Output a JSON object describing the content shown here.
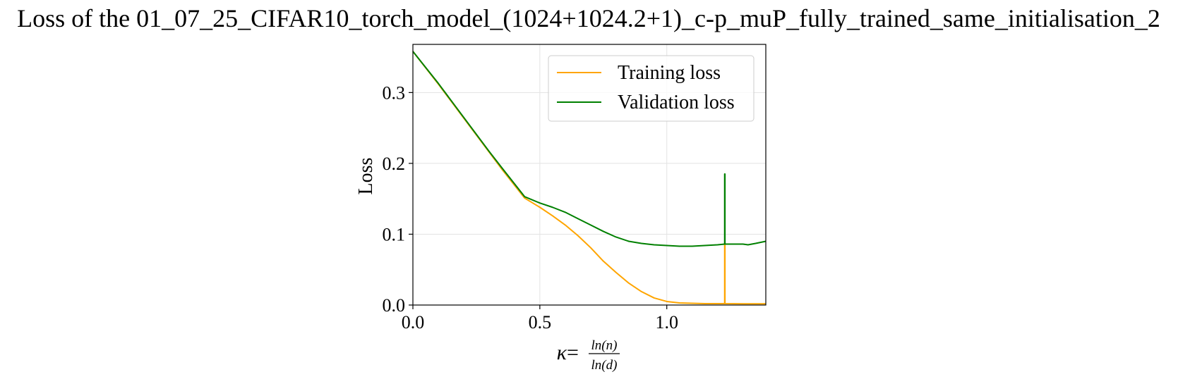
{
  "chart_data": {
    "type": "line",
    "title": "Loss of the 01_07_25_CIFAR10_torch_model_(1024+1024.2+1)_c-p_muP_fully_trained_same_initialisation_2",
    "xlabel": {
      "kappa": "κ",
      "equals": "=",
      "numerator": "ln(n)",
      "denominator": "ln(d)"
    },
    "ylabel": "Loss",
    "xlim": [
      0.0,
      1.39
    ],
    "ylim": [
      0.0,
      0.368
    ],
    "xticks": [
      {
        "value": 0.0,
        "label": "0.0"
      },
      {
        "value": 0.5,
        "label": "0.5"
      },
      {
        "value": 1.0,
        "label": "1.0"
      }
    ],
    "yticks": [
      {
        "value": 0.0,
        "label": "0.0"
      },
      {
        "value": 0.1,
        "label": "0.1"
      },
      {
        "value": 0.2,
        "label": "0.2"
      },
      {
        "value": 0.3,
        "label": "0.3"
      }
    ],
    "grid": true,
    "legend_position": "top-right",
    "series": [
      {
        "name": "Training loss",
        "color": "#FFA500",
        "points": [
          [
            0.0,
            0.358
          ],
          [
            0.1,
            0.312
          ],
          [
            0.2,
            0.264
          ],
          [
            0.3,
            0.216
          ],
          [
            0.35,
            0.192
          ],
          [
            0.44,
            0.151
          ],
          [
            0.5,
            0.138
          ],
          [
            0.55,
            0.126
          ],
          [
            0.6,
            0.113
          ],
          [
            0.65,
            0.098
          ],
          [
            0.7,
            0.081
          ],
          [
            0.75,
            0.062
          ],
          [
            0.8,
            0.046
          ],
          [
            0.85,
            0.031
          ],
          [
            0.9,
            0.019
          ],
          [
            0.95,
            0.01
          ],
          [
            1.0,
            0.005
          ],
          [
            1.05,
            0.003
          ],
          [
            1.1,
            0.0025
          ],
          [
            1.15,
            0.002
          ],
          [
            1.228,
            0.002
          ],
          [
            1.228,
            0.087
          ],
          [
            1.229,
            0.087
          ],
          [
            1.229,
            0.002
          ],
          [
            1.3,
            0.0018
          ],
          [
            1.39,
            0.0017
          ]
        ]
      },
      {
        "name": "Validation loss",
        "color": "#008000",
        "points": [
          [
            0.0,
            0.358
          ],
          [
            0.1,
            0.313
          ],
          [
            0.2,
            0.265
          ],
          [
            0.3,
            0.217
          ],
          [
            0.35,
            0.194
          ],
          [
            0.44,
            0.153
          ],
          [
            0.5,
            0.144
          ],
          [
            0.55,
            0.138
          ],
          [
            0.6,
            0.131
          ],
          [
            0.65,
            0.122
          ],
          [
            0.7,
            0.113
          ],
          [
            0.75,
            0.104
          ],
          [
            0.8,
            0.096
          ],
          [
            0.85,
            0.09
          ],
          [
            0.9,
            0.087
          ],
          [
            0.95,
            0.085
          ],
          [
            1.0,
            0.084
          ],
          [
            1.05,
            0.083
          ],
          [
            1.1,
            0.083
          ],
          [
            1.15,
            0.084
          ],
          [
            1.2,
            0.085
          ],
          [
            1.228,
            0.086
          ],
          [
            1.228,
            0.185
          ],
          [
            1.229,
            0.185
          ],
          [
            1.229,
            0.086
          ],
          [
            1.25,
            0.086
          ],
          [
            1.3,
            0.086
          ],
          [
            1.32,
            0.085
          ],
          [
            1.35,
            0.087
          ],
          [
            1.39,
            0.09
          ]
        ]
      }
    ]
  }
}
